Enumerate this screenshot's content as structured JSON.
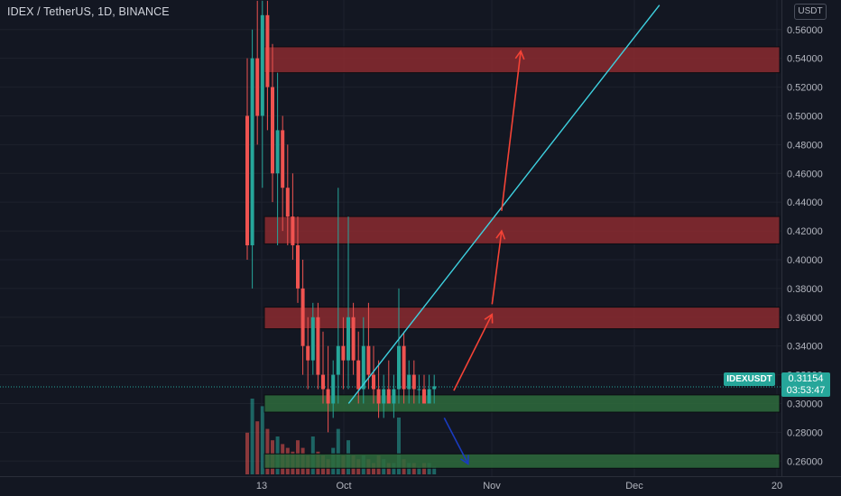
{
  "header": {
    "title": "IDEX / TetherUS, 1D, BINANCE"
  },
  "unit_badge": "USDT",
  "price_tag": {
    "symbol": "IDEXUSDT",
    "price": "0.31154",
    "countdown": "03:53:47"
  },
  "colors": {
    "bg": "#131722",
    "grid": "#1e222d",
    "up": "#26a69a",
    "down": "#ef5350",
    "resistance_zone": "#8b2a2f",
    "support_zone": "#2e6b3c",
    "trendline": "#3ed1e0",
    "arrow_up": "#f44336",
    "arrow_down": "#1a3bbf",
    "text": "#b2b5be"
  },
  "chart_data": {
    "type": "candlestick",
    "title": "IDEX / TetherUS, 1D, BINANCE",
    "x_tick_labels": [
      "13",
      "Oct",
      "Nov",
      "Dec",
      "20"
    ],
    "y_ticks": [
      0.26,
      0.28,
      0.3,
      0.32,
      0.34,
      0.36,
      0.38,
      0.4,
      0.42,
      0.44,
      0.46,
      0.48,
      0.5,
      0.52,
      0.54,
      0.56
    ],
    "ylim": [
      0.247,
      0.577
    ],
    "y_unit": "USDT",
    "last_price": 0.31154,
    "zones": {
      "resistance": [
        [
          0.53,
          0.548
        ],
        [
          0.411,
          0.43
        ],
        [
          0.352,
          0.367
        ]
      ],
      "support": [
        [
          0.294,
          0.306
        ],
        [
          0.255,
          0.265
        ]
      ]
    },
    "trendline": {
      "from": [
        "Oct 2",
        0.3
      ],
      "to": [
        "Dec 6",
        0.577
      ]
    },
    "projection_arrows": [
      {
        "direction": "up",
        "from": [
          "Oct 24",
          0.309
        ],
        "to": [
          "Nov 1",
          0.362
        ]
      },
      {
        "direction": "up",
        "from": [
          "Nov 1",
          0.369
        ],
        "to": [
          "Nov 3",
          0.42
        ]
      },
      {
        "direction": "up",
        "from": [
          "Nov 3",
          0.434
        ],
        "to": [
          "Nov 7",
          0.545
        ]
      },
      {
        "direction": "down",
        "from": [
          "Oct 22",
          0.29
        ],
        "to": [
          "Oct 27",
          0.258
        ]
      }
    ],
    "candles": [
      [
        0.5,
        0.54,
        0.4,
        0.41
      ],
      [
        0.41,
        0.56,
        0.38,
        0.54
      ],
      [
        0.54,
        0.58,
        0.48,
        0.5
      ],
      [
        0.5,
        0.58,
        0.45,
        0.57
      ],
      [
        0.57,
        0.58,
        0.49,
        0.52
      ],
      [
        0.52,
        0.55,
        0.44,
        0.46
      ],
      [
        0.46,
        0.53,
        0.41,
        0.49
      ],
      [
        0.49,
        0.5,
        0.42,
        0.45
      ],
      [
        0.45,
        0.48,
        0.41,
        0.43
      ],
      [
        0.43,
        0.46,
        0.4,
        0.41
      ],
      [
        0.41,
        0.43,
        0.37,
        0.38
      ],
      [
        0.38,
        0.4,
        0.32,
        0.34
      ],
      [
        0.34,
        0.36,
        0.31,
        0.33
      ],
      [
        0.33,
        0.37,
        0.32,
        0.36
      ],
      [
        0.36,
        0.37,
        0.31,
        0.32
      ],
      [
        0.32,
        0.35,
        0.3,
        0.31
      ],
      [
        0.31,
        0.34,
        0.28,
        0.3
      ],
      [
        0.3,
        0.33,
        0.29,
        0.32
      ],
      [
        0.32,
        0.45,
        0.3,
        0.34
      ],
      [
        0.34,
        0.36,
        0.31,
        0.33
      ],
      [
        0.33,
        0.43,
        0.31,
        0.36
      ],
      [
        0.36,
        0.37,
        0.32,
        0.33
      ],
      [
        0.33,
        0.35,
        0.3,
        0.31
      ],
      [
        0.31,
        0.36,
        0.3,
        0.34
      ],
      [
        0.34,
        0.37,
        0.31,
        0.32
      ],
      [
        0.32,
        0.34,
        0.3,
        0.31
      ],
      [
        0.31,
        0.33,
        0.29,
        0.3
      ],
      [
        0.3,
        0.32,
        0.29,
        0.31
      ],
      [
        0.31,
        0.33,
        0.3,
        0.3
      ],
      [
        0.3,
        0.32,
        0.29,
        0.31
      ],
      [
        0.31,
        0.38,
        0.3,
        0.34
      ],
      [
        0.34,
        0.35,
        0.3,
        0.31
      ],
      [
        0.31,
        0.33,
        0.3,
        0.32
      ],
      [
        0.32,
        0.33,
        0.3,
        0.31
      ],
      [
        0.31,
        0.32,
        0.3,
        0.31
      ],
      [
        0.31,
        0.32,
        0.3,
        0.3
      ],
      [
        0.3,
        0.32,
        0.3,
        0.31
      ],
      [
        0.31,
        0.32,
        0.3,
        0.312
      ]
    ],
    "volume_relative": [
      0.11,
      0.2,
      0.14,
      0.18,
      0.12,
      0.09,
      0.1,
      0.08,
      0.07,
      0.06,
      0.09,
      0.07,
      0.05,
      0.1,
      0.06,
      0.05,
      0.04,
      0.07,
      0.12,
      0.05,
      0.09,
      0.05,
      0.04,
      0.05,
      0.04,
      0.03,
      0.05,
      0.04,
      0.03,
      0.03,
      0.15,
      0.04,
      0.03,
      0.03,
      0.02,
      0.03,
      0.03,
      0.02
    ]
  }
}
